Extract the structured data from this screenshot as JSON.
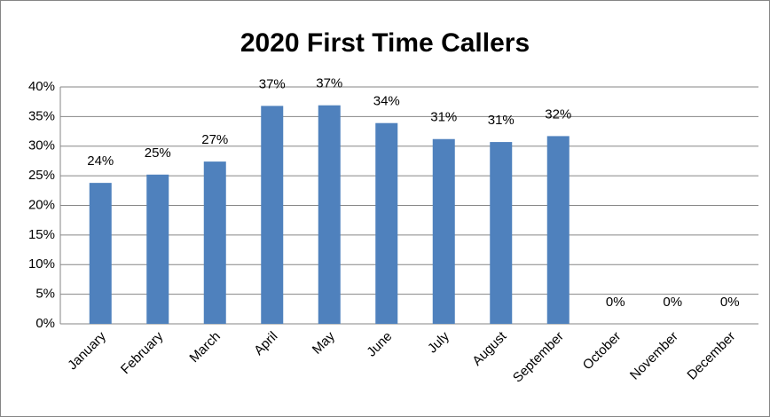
{
  "chart_data": {
    "type": "bar",
    "title": "2020 First Time Callers",
    "categories": [
      "January",
      "February",
      "March",
      "April",
      "May",
      "June",
      "July",
      "August",
      "September",
      "October",
      "November",
      "December"
    ],
    "values": [
      23.8,
      25.2,
      27.4,
      36.8,
      36.9,
      33.9,
      31.2,
      30.7,
      31.7,
      0,
      0,
      0
    ],
    "value_labels": [
      "24%",
      "25%",
      "27%",
      "37%",
      "37%",
      "34%",
      "31%",
      "31%",
      "32%",
      "0%",
      "0%",
      "0%"
    ],
    "color": "#4f81bd",
    "ylim": [
      0,
      40
    ],
    "yticks": [
      {
        "value": 0,
        "label": "0%"
      },
      {
        "value": 5,
        "label": "5%"
      },
      {
        "value": 10,
        "label": "10%"
      },
      {
        "value": 15,
        "label": "15%"
      },
      {
        "value": 20,
        "label": "20%"
      },
      {
        "value": 25,
        "label": "25%"
      },
      {
        "value": 30,
        "label": "30%"
      },
      {
        "value": 35,
        "label": "35%"
      },
      {
        "value": 40,
        "label": "40%"
      }
    ],
    "grid": true
  }
}
